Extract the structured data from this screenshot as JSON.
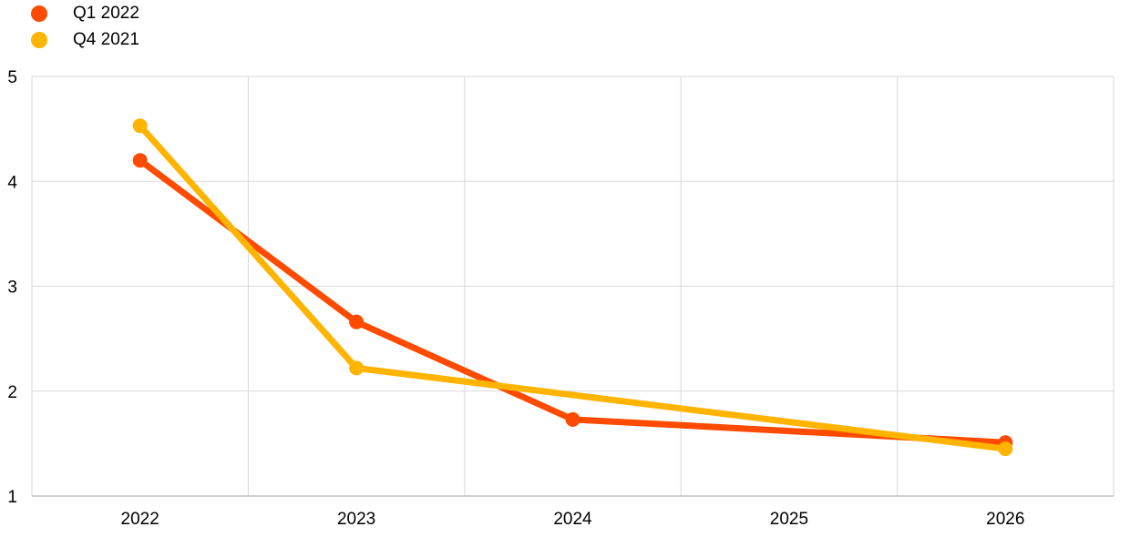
{
  "chart_data": {
    "type": "line",
    "categories": [
      "2022",
      "2023",
      "2024",
      "2025",
      "2026"
    ],
    "x": [
      2022,
      2023,
      2024,
      2026
    ],
    "series": [
      {
        "name": "Q1 2022",
        "color": "#ff4b00",
        "x": [
          2022,
          2023,
          2024,
          2026
        ],
        "values": [
          4.2,
          2.66,
          1.73,
          1.51
        ]
      },
      {
        "name": "Q4 2021",
        "color": "#ffb400",
        "x": [
          2022,
          2023,
          2026
        ],
        "values": [
          4.53,
          2.22,
          1.45
        ]
      }
    ],
    "yticks": [
      "1",
      "2",
      "3",
      "4",
      "5"
    ],
    "ylim": [
      1,
      5
    ],
    "xlim": [
      2021.5,
      2026.5
    ],
    "grid": true,
    "legend_position": "top-left"
  }
}
